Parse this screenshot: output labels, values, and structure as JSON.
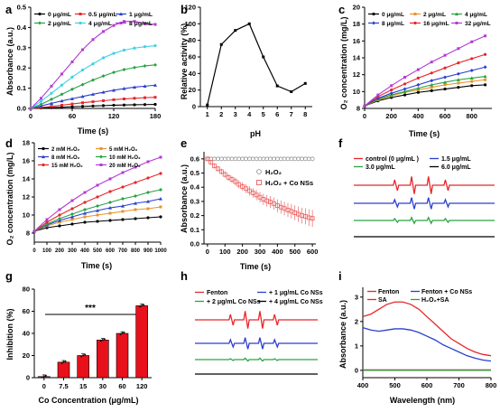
{
  "figure": {
    "panels": {
      "a": {
        "label": "a",
        "ylabel": "Absorbance (a.u.)",
        "xlabel": "Time (s)"
      },
      "b": {
        "label": "b",
        "ylabel": "Relative activity (%)",
        "xlabel": "pH"
      },
      "c": {
        "label": "c",
        "ylabel": "O₂ concentration (mg/L)",
        "xlabel": "Time (s)"
      },
      "d": {
        "label": "d",
        "ylabel": "O₂ concentration (mg/L)",
        "xlabel": "Time (s)"
      },
      "e": {
        "label": "e",
        "ylabel": "Absorbance (a.u.)",
        "xlabel": "Time (s)"
      },
      "f": {
        "label": "f"
      },
      "g": {
        "label": "g",
        "ylabel": "Inhibition (%)",
        "xlabel": "Co Concentration (μg/mL)",
        "annotation": "***"
      },
      "h": {
        "label": "h"
      },
      "i": {
        "label": "i",
        "ylabel": "Absorbance (a.u.)",
        "xlabel": "Wavelength (nm)"
      }
    }
  },
  "chart_data": [
    {
      "panel": "a",
      "type": "line",
      "xlim": [
        0,
        180
      ],
      "ylim": [
        0,
        0.5
      ],
      "xticks": [
        "0",
        "60",
        "120",
        "180"
      ],
      "yticks": [
        "0.0",
        "0.1",
        "0.2",
        "0.3",
        "0.4",
        "0.5"
      ],
      "x": [
        0,
        15,
        30,
        45,
        60,
        75,
        90,
        105,
        120,
        135,
        150,
        165,
        180
      ],
      "legend_position": "top",
      "series": [
        {
          "name": "0 μg/mL",
          "color": "#000000",
          "values": [
            0.0,
            0.002,
            0.004,
            0.006,
            0.008,
            0.01,
            0.012,
            0.014,
            0.016,
            0.017,
            0.018,
            0.019,
            0.02
          ]
        },
        {
          "name": "0.5 μg/mL",
          "color": "#e8262b",
          "values": [
            0.0,
            0.005,
            0.01,
            0.016,
            0.022,
            0.028,
            0.033,
            0.038,
            0.043,
            0.047,
            0.05,
            0.053,
            0.055
          ]
        },
        {
          "name": "1 μg/mL",
          "color": "#2b3fcf",
          "values": [
            0.0,
            0.012,
            0.025,
            0.037,
            0.048,
            0.059,
            0.07,
            0.08,
            0.09,
            0.098,
            0.105,
            0.11,
            0.115
          ]
        },
        {
          "name": "2 μg/mL",
          "color": "#27a342",
          "values": [
            0.0,
            0.02,
            0.045,
            0.07,
            0.095,
            0.118,
            0.14,
            0.16,
            0.178,
            0.192,
            0.202,
            0.21,
            0.215
          ]
        },
        {
          "name": "4 μg/mL",
          "color": "#3fd1e6",
          "values": [
            0.0,
            0.035,
            0.075,
            0.115,
            0.155,
            0.19,
            0.22,
            0.25,
            0.272,
            0.288,
            0.298,
            0.305,
            0.31
          ]
        },
        {
          "name": "8 μg/mL",
          "color": "#b33ad6",
          "values": [
            0.0,
            0.05,
            0.11,
            0.17,
            0.23,
            0.29,
            0.34,
            0.38,
            0.41,
            0.43,
            0.43,
            0.42,
            0.415
          ]
        }
      ]
    },
    {
      "panel": "b",
      "type": "line",
      "xlim": [
        0.5,
        8.5
      ],
      "ylim": [
        0,
        120
      ],
      "xticks": [
        "1",
        "2",
        "3",
        "4",
        "5",
        "6",
        "7",
        "8"
      ],
      "yticks": [
        "0",
        "20",
        "40",
        "60",
        "80",
        "100",
        "120"
      ],
      "x": [
        1,
        2,
        3,
        4,
        5,
        6,
        7,
        8
      ],
      "series": [
        {
          "color": "#000000",
          "values": [
            2,
            75,
            92,
            100,
            60,
            25,
            18,
            28
          ]
        }
      ]
    },
    {
      "panel": "c",
      "type": "line",
      "xlim": [
        0,
        950
      ],
      "ylim": [
        8,
        20
      ],
      "xticks": [
        "0",
        "200",
        "400",
        "600",
        "800"
      ],
      "yticks": [
        "8",
        "10",
        "12",
        "14",
        "16",
        "18",
        "20"
      ],
      "x": [
        0,
        100,
        200,
        300,
        400,
        500,
        600,
        700,
        800,
        900
      ],
      "legend_position": "top",
      "series": [
        {
          "name": "0 μg/mL",
          "color": "#000000",
          "values": [
            8.3,
            8.9,
            9.3,
            9.6,
            9.9,
            10.1,
            10.3,
            10.5,
            10.7,
            10.8
          ]
        },
        {
          "name": "2 μg/mL",
          "color": "#e8942b",
          "values": [
            8.3,
            9.0,
            9.5,
            9.9,
            10.2,
            10.5,
            10.8,
            11.0,
            11.2,
            11.4
          ]
        },
        {
          "name": "4 μg/mL",
          "color": "#27a342",
          "values": [
            8.3,
            9.1,
            9.6,
            10.0,
            10.4,
            10.8,
            11.1,
            11.4,
            11.6,
            11.8
          ]
        },
        {
          "name": "8 μg/mL",
          "color": "#2b3fcf",
          "values": [
            8.3,
            9.2,
            9.8,
            10.3,
            10.8,
            11.3,
            11.7,
            12.1,
            12.5,
            12.9
          ]
        },
        {
          "name": "16 μg/mL",
          "color": "#e8262b",
          "values": [
            8.3,
            9.4,
            10.2,
            10.9,
            11.6,
            12.2,
            12.8,
            13.4,
            13.9,
            14.4
          ]
        },
        {
          "name": "32 μg/mL",
          "color": "#b33ad6",
          "values": [
            8.3,
            9.6,
            10.7,
            11.7,
            12.6,
            13.5,
            14.3,
            15.1,
            15.9,
            16.6
          ]
        }
      ]
    },
    {
      "panel": "d",
      "type": "line",
      "xlim": [
        0,
        1000
      ],
      "ylim": [
        7,
        18
      ],
      "xticks": [
        "0",
        "100",
        "200",
        "300",
        "400",
        "500",
        "600",
        "700",
        "800",
        "900",
        "1000"
      ],
      "yticks": [
        "8",
        "10",
        "12",
        "14",
        "16",
        "18"
      ],
      "x": [
        0,
        100,
        200,
        300,
        400,
        500,
        600,
        700,
        800,
        900,
        1000
      ],
      "legend_position": "top",
      "series": [
        {
          "name": "2 mM H₂O₂",
          "color": "#000000",
          "values": [
            8.2,
            8.6,
            8.8,
            9.0,
            9.2,
            9.3,
            9.4,
            9.5,
            9.6,
            9.7,
            9.8
          ]
        },
        {
          "name": "5 mM H₂O₂",
          "color": "#e8942b",
          "values": [
            8.2,
            8.8,
            9.2,
            9.5,
            9.8,
            10.0,
            10.2,
            10.4,
            10.6,
            10.7,
            10.9
          ]
        },
        {
          "name": "8 mM H₂O₂",
          "color": "#2b3fcf",
          "values": [
            8.2,
            8.9,
            9.4,
            9.8,
            10.2,
            10.5,
            10.8,
            11.0,
            11.3,
            11.5,
            11.8
          ]
        },
        {
          "name": "10 mM H₂O₂",
          "color": "#27a342",
          "values": [
            8.2,
            9.0,
            9.6,
            10.1,
            10.6,
            11.0,
            11.4,
            11.8,
            12.1,
            12.5,
            12.8
          ]
        },
        {
          "name": "15 mM H₂O₂",
          "color": "#e8262b",
          "values": [
            8.2,
            9.2,
            10.0,
            10.7,
            11.4,
            12.0,
            12.6,
            13.1,
            13.6,
            14.1,
            14.6
          ]
        },
        {
          "name": "20 mM H₂O₂",
          "color": "#b33ad6",
          "values": [
            8.2,
            9.5,
            10.6,
            11.6,
            12.5,
            13.3,
            14.0,
            14.7,
            15.3,
            15.9,
            16.4
          ]
        }
      ]
    },
    {
      "panel": "e",
      "type": "scatter",
      "xlim": [
        -20,
        620
      ],
      "ylim": [
        0,
        0.65
      ],
      "xticks": [
        "0",
        "100",
        "200",
        "300",
        "400",
        "500",
        "600"
      ],
      "yticks": [
        "0.0",
        "0.1",
        "0.2",
        "0.3",
        "0.4",
        "0.5",
        "0.6"
      ],
      "x": [
        0,
        20,
        40,
        60,
        80,
        100,
        120,
        140,
        160,
        180,
        200,
        220,
        240,
        260,
        280,
        300,
        320,
        340,
        360,
        380,
        400,
        420,
        440,
        460,
        480,
        500,
        520,
        540,
        560,
        580,
        600
      ],
      "series": [
        {
          "name": "H₂O₂",
          "color": "#888888",
          "values": [
            0.6,
            0.6,
            0.6,
            0.6,
            0.6,
            0.6,
            0.6,
            0.6,
            0.6,
            0.6,
            0.6,
            0.6,
            0.6,
            0.6,
            0.6,
            0.6,
            0.6,
            0.6,
            0.6,
            0.6,
            0.6,
            0.6,
            0.6,
            0.6,
            0.6,
            0.6,
            0.6,
            0.6,
            0.6,
            0.6,
            0.6
          ]
        },
        {
          "name": "H₂O₂ + Co NSs",
          "color": "#e84a4a",
          "values": [
            0.6,
            0.575,
            0.55,
            0.53,
            0.51,
            0.49,
            0.47,
            0.455,
            0.44,
            0.42,
            0.405,
            0.39,
            0.375,
            0.36,
            0.345,
            0.33,
            0.315,
            0.305,
            0.295,
            0.285,
            0.27,
            0.26,
            0.25,
            0.24,
            0.23,
            0.22,
            0.21,
            0.2,
            0.195,
            0.185,
            0.18
          ]
        }
      ]
    },
    {
      "panel": "f",
      "type": "line",
      "legend_position": "top",
      "series": [
        {
          "name": "control (0 μg/mL )",
          "color": "#e8262b"
        },
        {
          "name": "1.5 μg/mL",
          "color": "#2b3fcf"
        },
        {
          "name": "3.0 μg/mL",
          "color": "#27a342"
        },
        {
          "name": "6.0 μg/mL",
          "color": "#000000"
        }
      ]
    },
    {
      "panel": "g",
      "type": "bar",
      "categories": [
        "0",
        "7.5",
        "15",
        "30",
        "60",
        "120"
      ],
      "values": [
        1,
        14,
        20,
        34,
        40,
        65
      ],
      "ylim": [
        0,
        80
      ],
      "yticks": [
        "0",
        "20",
        "40",
        "60",
        "80"
      ],
      "color": "#e8101a"
    },
    {
      "panel": "h",
      "type": "line",
      "legend_position": "top",
      "series": [
        {
          "name": "Fenton",
          "color": "#e8262b"
        },
        {
          "name": "+ 1 μg/mL Co NSs",
          "color": "#2b3fcf"
        },
        {
          "name": "+ 2 μg/mL Co NSs",
          "color": "#27a342"
        },
        {
          "name": "+ 4 μg/mL Co NSs",
          "color": "#000000"
        }
      ]
    },
    {
      "panel": "i",
      "type": "line",
      "xlim": [
        400,
        800
      ],
      "ylim": [
        -0.3,
        3.4
      ],
      "xticks": [
        "400",
        "500",
        "600",
        "700",
        "800"
      ],
      "yticks": [
        "0",
        "1",
        "2",
        "3"
      ],
      "x": [
        400,
        425,
        450,
        475,
        500,
        525,
        550,
        575,
        600,
        625,
        650,
        675,
        700,
        725,
        750,
        775,
        800
      ],
      "legend_position": "top",
      "series": [
        {
          "name": "Fenton",
          "color": "#e8262b",
          "values": [
            2.2,
            2.3,
            2.5,
            2.7,
            2.8,
            2.8,
            2.7,
            2.5,
            2.2,
            1.9,
            1.6,
            1.3,
            1.1,
            0.9,
            0.75,
            0.65,
            0.6
          ]
        },
        {
          "name": "Fenton + Co NSs",
          "color": "#2b3fcf",
          "values": [
            1.75,
            1.65,
            1.6,
            1.65,
            1.7,
            1.7,
            1.65,
            1.55,
            1.4,
            1.25,
            1.05,
            0.9,
            0.75,
            0.6,
            0.5,
            0.42,
            0.38
          ]
        },
        {
          "name": "SA",
          "color": "#e8262b",
          "values": [
            0.02,
            0.02,
            0.02,
            0.02,
            0.02,
            0.02,
            0.02,
            0.02,
            0.02,
            0.02,
            0.02,
            0.02,
            0.02,
            0.02,
            0.02,
            0.02,
            0.02
          ]
        },
        {
          "name": "H₂O₂+SA",
          "color": "#27a342",
          "values": [
            0.0,
            0.0,
            0.0,
            0.0,
            0.0,
            0.0,
            0.0,
            0.0,
            0.0,
            0.0,
            0.0,
            0.0,
            0.0,
            0.0,
            0.0,
            0.0,
            0.0
          ]
        }
      ]
    }
  ]
}
